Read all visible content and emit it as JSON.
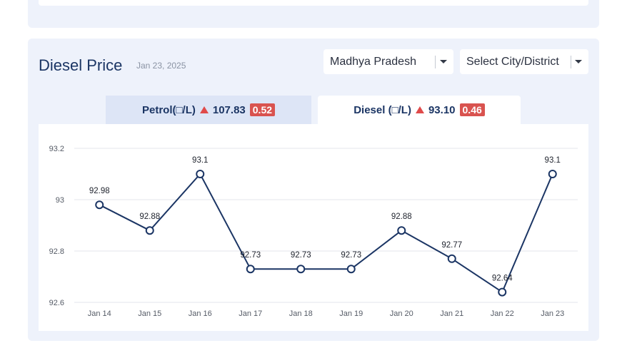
{
  "card": {
    "title": "Diesel Price",
    "date": "Jan 23, 2025"
  },
  "filters": {
    "state_value": "Madhya Pradesh",
    "city_placeholder": "Select City/District"
  },
  "tabs": {
    "petrol": {
      "label": "Petrol(□/L)",
      "price": "107.83",
      "change": "0.52",
      "trend": "up"
    },
    "diesel": {
      "label": "Diesel (□/L)",
      "price": "93.10",
      "change": "0.46",
      "trend": "up"
    }
  },
  "colors": {
    "line": "#1b3564",
    "trend_up": "#e04a4a",
    "badge": "#d9534f",
    "accent_text": "#1b3564"
  },
  "chart_data": {
    "type": "line",
    "categories": [
      "Jan 14",
      "Jan 15",
      "Jan 16",
      "Jan 17",
      "Jan 18",
      "Jan 19",
      "Jan 20",
      "Jan 21",
      "Jan 22",
      "Jan 23"
    ],
    "values": [
      92.98,
      92.88,
      93.1,
      92.73,
      92.73,
      92.73,
      92.88,
      92.77,
      92.64,
      93.1
    ],
    "data_labels": [
      "92.98",
      "92.88",
      "93.1",
      "92.73",
      "92.73",
      "92.73",
      "92.88",
      "92.77",
      "92.64",
      "93.1"
    ],
    "y_ticks": [
      92.6,
      92.8,
      93,
      93.2
    ],
    "y_tick_labels": [
      "92.6",
      "92.8",
      "93",
      "93.2"
    ],
    "ylim": [
      92.6,
      93.2
    ],
    "grid": true,
    "legend": "none"
  }
}
